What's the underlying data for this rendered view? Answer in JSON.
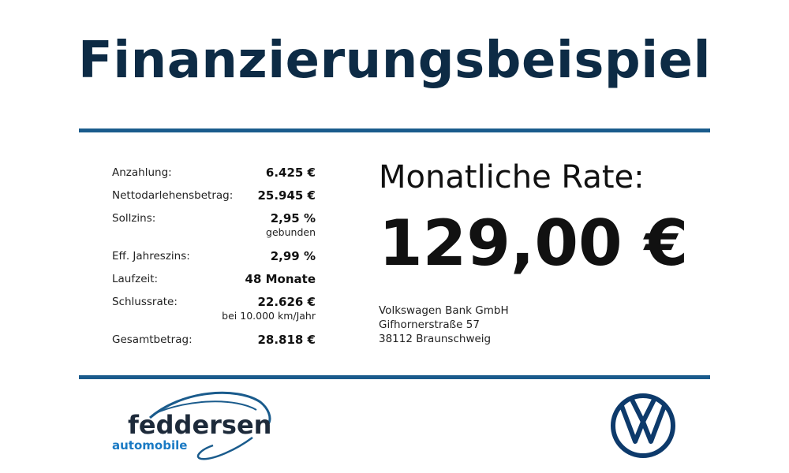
{
  "header": {
    "title": "Finanzierungsbeispiel"
  },
  "details": {
    "rows": [
      {
        "label": "Anzahlung:",
        "value": "6.425 €"
      },
      {
        "label": "Nettodarlehensbetrag:",
        "value": "25.945 €"
      },
      {
        "label": "Sollzins:",
        "value": "2,95 %",
        "note": "gebunden"
      },
      {
        "label": "Eff. Jahreszins:",
        "value": "2,99 %"
      },
      {
        "label": "Laufzeit:",
        "value": "48 Monate"
      },
      {
        "label": "Schlussrate:",
        "value": "22.626 €",
        "note": "bei 10.000 km/Jahr"
      },
      {
        "label": "Gesamtbetrag:",
        "value": "28.818 €"
      }
    ]
  },
  "rate": {
    "label": "Monatliche Rate:",
    "value": "129,00 €"
  },
  "lender": {
    "lines": [
      "Volkswagen Bank GmbH",
      "Gifhornerstraße 57",
      "38112 Braunschweig"
    ]
  },
  "dealer": {
    "name": "feddersen",
    "tagline": "automobile"
  }
}
